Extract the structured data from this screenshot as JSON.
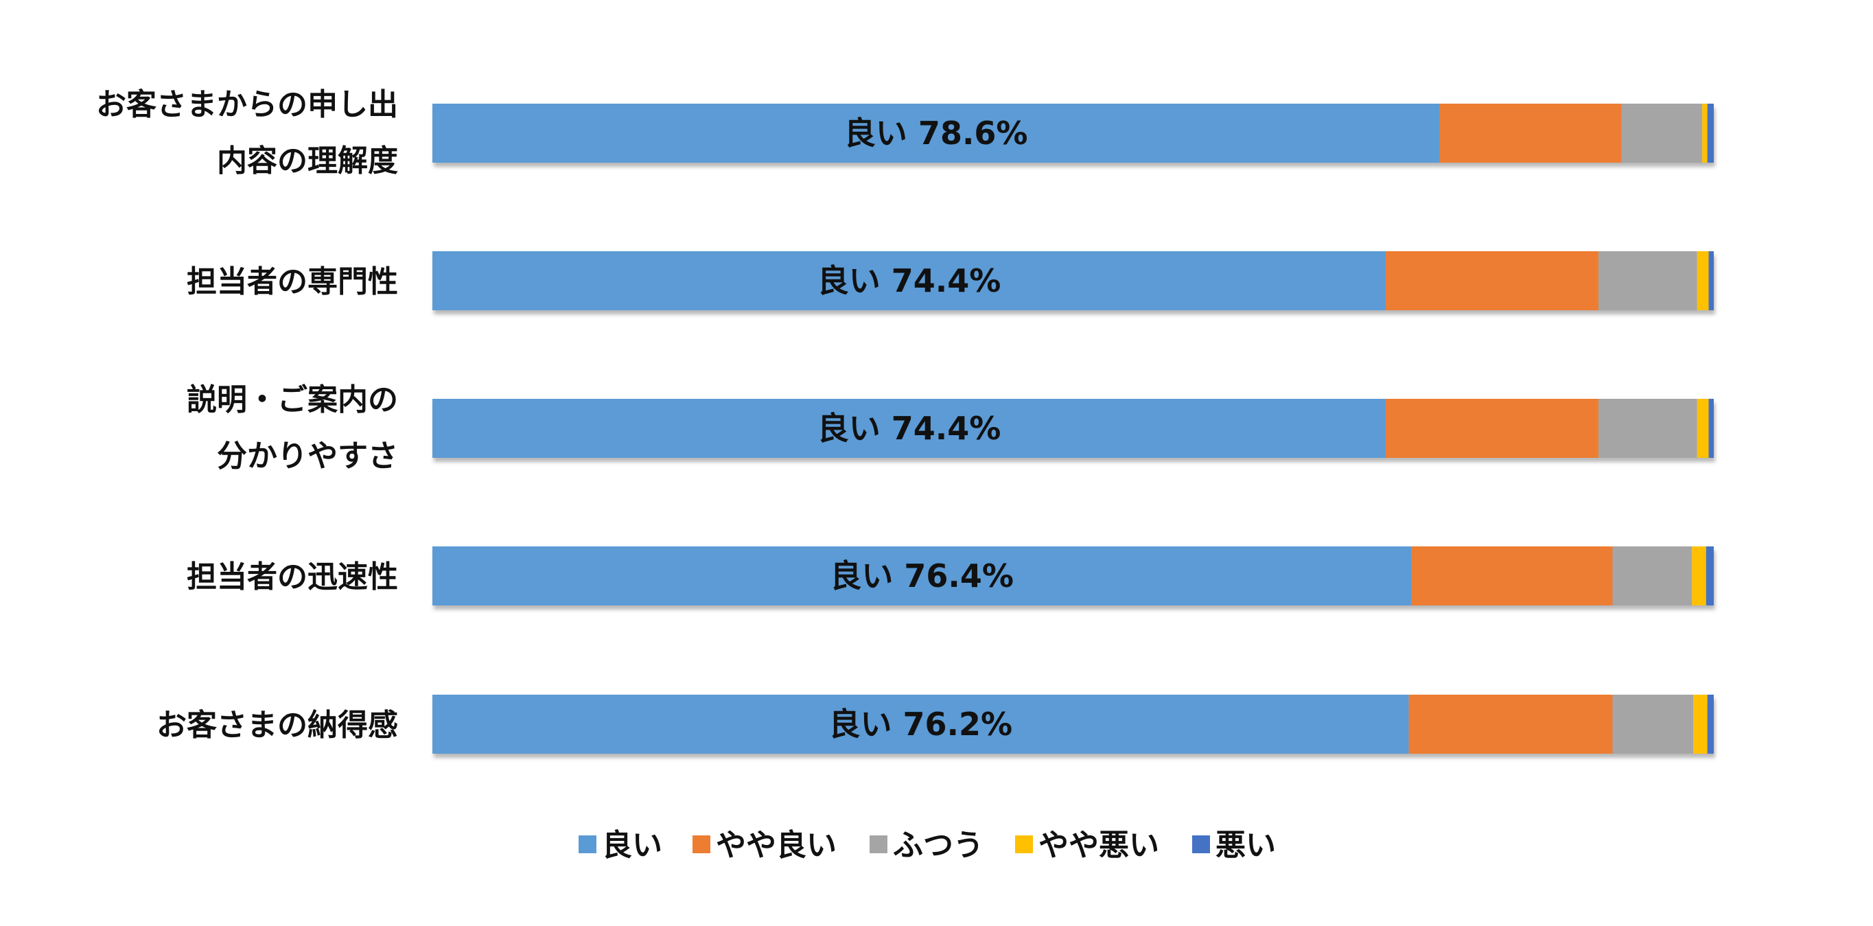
{
  "chart_data": {
    "type": "bar",
    "orientation": "horizontal",
    "stacked": true,
    "percent_stacked": true,
    "categories": [
      [
        "お客さまからの申し出",
        "内容の理解度"
      ],
      [
        "担当者の専門性"
      ],
      [
        "説明・ご案内の",
        "分かりやすさ"
      ],
      [
        "担当者の迅速性"
      ],
      [
        "お客さまの納得感"
      ]
    ],
    "series": [
      {
        "name": "良い",
        "color": "#5B9BD5",
        "values": [
          78.6,
          74.4,
          74.4,
          76.4,
          76.2
        ]
      },
      {
        "name": "やや良い",
        "color": "#ED7D31",
        "values": [
          14.2,
          16.6,
          16.6,
          15.7,
          15.9
        ]
      },
      {
        "name": "ふつう",
        "color": "#A5A5A5",
        "values": [
          6.3,
          7.7,
          7.7,
          6.2,
          6.3
        ]
      },
      {
        "name": "やや悪い",
        "color": "#FFC000",
        "values": [
          0.4,
          0.9,
          0.9,
          1.1,
          1.1
        ]
      },
      {
        "name": "悪い",
        "color": "#4472C4",
        "values": [
          0.5,
          0.4,
          0.4,
          0.6,
          0.5
        ]
      }
    ],
    "data_labels": [
      "良い 78.6%",
      "良い 74.4%",
      "良い 74.4%",
      "良い 76.4%",
      "良い 76.2%"
    ],
    "xlim": [
      0,
      100
    ],
    "grid": false,
    "legend_position": "bottom"
  }
}
